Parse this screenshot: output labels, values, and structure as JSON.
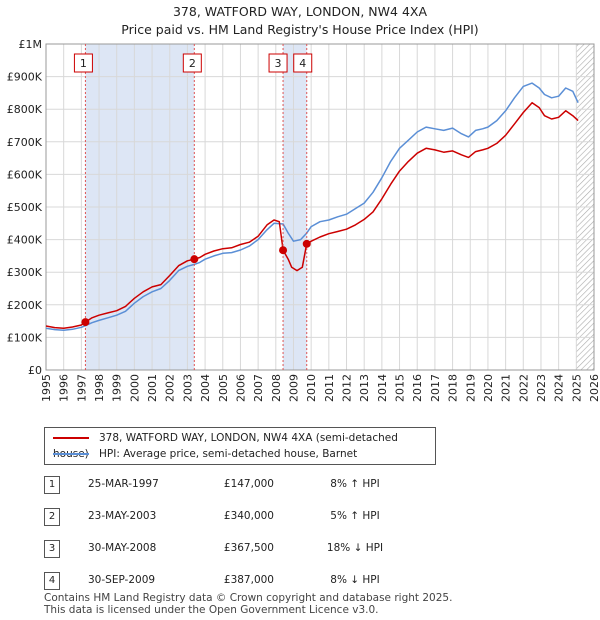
{
  "header": {
    "title_line1": "378, WATFORD WAY, LONDON, NW4 4XA",
    "title_line2": "Price paid vs. HM Land Registry's House Price Index (HPI)"
  },
  "colors": {
    "property_line": "#cc0000",
    "hpi_line": "#5b8fd6",
    "shade": "#dde6f5",
    "grid": "#d8d8d8",
    "hatch": "#aaaaaa"
  },
  "legend": {
    "property_label": "378, WATFORD WAY, LONDON, NW4 4XA (semi-detached house)",
    "hpi_label": "HPI: Average price, semi-detached house, Barnet"
  },
  "sales": [
    {
      "num": "1",
      "date": "25-MAR-1997",
      "price": "£147,000",
      "hpi": "8% ↑ HPI"
    },
    {
      "num": "2",
      "date": "23-MAY-2003",
      "price": "£340,000",
      "hpi": "5% ↑ HPI"
    },
    {
      "num": "3",
      "date": "30-MAY-2008",
      "price": "£367,500",
      "hpi": "18% ↓ HPI"
    },
    {
      "num": "4",
      "date": "30-SEP-2009",
      "price": "£387,000",
      "hpi": "8% ↓ HPI"
    }
  ],
  "footer": {
    "line1": "Contains HM Land Registry data © Crown copyright and database right 2025.",
    "line2": "This data is licensed under the Open Government Licence v3.0."
  },
  "chart_data": {
    "type": "line",
    "title": "378, WATFORD WAY, LONDON, NW4 4XA",
    "subtitle": "Price paid vs. HM Land Registry's House Price Index (HPI)",
    "xlim": [
      1995,
      2026
    ],
    "ylim": [
      0,
      1000000
    ],
    "x_ticks": [
      "1995",
      "1996",
      "1997",
      "1998",
      "1999",
      "2000",
      "2001",
      "2002",
      "2003",
      "2004",
      "2005",
      "2006",
      "2007",
      "2008",
      "2009",
      "2010",
      "2011",
      "2012",
      "2013",
      "2014",
      "2015",
      "2016",
      "2017",
      "2018",
      "2019",
      "2020",
      "2021",
      "2022",
      "2023",
      "2024",
      "2025",
      "2026"
    ],
    "y_ticks": [
      {
        "value": 0,
        "label": "£0"
      },
      {
        "value": 100000,
        "label": "£100K"
      },
      {
        "value": 200000,
        "label": "£200K"
      },
      {
        "value": 300000,
        "label": "£300K"
      },
      {
        "value": 400000,
        "label": "£400K"
      },
      {
        "value": 500000,
        "label": "£500K"
      },
      {
        "value": 600000,
        "label": "£600K"
      },
      {
        "value": 700000,
        "label": "£700K"
      },
      {
        "value": 800000,
        "label": "£800K"
      },
      {
        "value": 900000,
        "label": "£900K"
      },
      {
        "value": 1000000,
        "label": "£1M"
      }
    ],
    "shaded_ranges": [
      [
        1997.23,
        2003.39
      ],
      [
        2008.41,
        2009.75
      ]
    ],
    "hatched_from": 2025.0,
    "sale_markers": [
      {
        "label": "1",
        "x": 1997.23,
        "y": 147000
      },
      {
        "label": "2",
        "x": 2003.39,
        "y": 340000
      },
      {
        "label": "3",
        "x": 2008.41,
        "y": 367500
      },
      {
        "label": "4",
        "x": 2009.75,
        "y": 387000
      }
    ],
    "series": [
      {
        "name": "378, WATFORD WAY, LONDON, NW4 4XA (semi-detached house)",
        "color": "#cc0000",
        "points": [
          [
            1995.0,
            135000
          ],
          [
            1995.5,
            130000
          ],
          [
            1996.0,
            128000
          ],
          [
            1996.5,
            132000
          ],
          [
            1997.0,
            138000
          ],
          [
            1997.23,
            147000
          ],
          [
            1997.6,
            160000
          ],
          [
            1998.0,
            168000
          ],
          [
            1998.5,
            175000
          ],
          [
            1999.0,
            182000
          ],
          [
            1999.5,
            195000
          ],
          [
            2000.0,
            220000
          ],
          [
            2000.5,
            240000
          ],
          [
            2001.0,
            255000
          ],
          [
            2001.5,
            262000
          ],
          [
            2002.0,
            290000
          ],
          [
            2002.5,
            320000
          ],
          [
            2003.0,
            335000
          ],
          [
            2003.39,
            340000
          ],
          [
            2003.7,
            345000
          ],
          [
            2004.0,
            355000
          ],
          [
            2004.5,
            365000
          ],
          [
            2005.0,
            372000
          ],
          [
            2005.5,
            375000
          ],
          [
            2006.0,
            385000
          ],
          [
            2006.5,
            392000
          ],
          [
            2007.0,
            410000
          ],
          [
            2007.5,
            445000
          ],
          [
            2007.9,
            460000
          ],
          [
            2008.2,
            455000
          ],
          [
            2008.41,
            367500
          ],
          [
            2008.7,
            340000
          ],
          [
            2008.9,
            315000
          ],
          [
            2009.2,
            305000
          ],
          [
            2009.5,
            315000
          ],
          [
            2009.75,
            387000
          ],
          [
            2010.0,
            395000
          ],
          [
            2010.5,
            408000
          ],
          [
            2011.0,
            418000
          ],
          [
            2011.5,
            425000
          ],
          [
            2012.0,
            432000
          ],
          [
            2012.5,
            445000
          ],
          [
            2013.0,
            462000
          ],
          [
            2013.5,
            485000
          ],
          [
            2014.0,
            525000
          ],
          [
            2014.5,
            570000
          ],
          [
            2015.0,
            610000
          ],
          [
            2015.5,
            640000
          ],
          [
            2016.0,
            665000
          ],
          [
            2016.5,
            680000
          ],
          [
            2017.0,
            675000
          ],
          [
            2017.5,
            668000
          ],
          [
            2018.0,
            672000
          ],
          [
            2018.5,
            660000
          ],
          [
            2018.9,
            652000
          ],
          [
            2019.3,
            670000
          ],
          [
            2019.7,
            675000
          ],
          [
            2020.0,
            680000
          ],
          [
            2020.5,
            695000
          ],
          [
            2021.0,
            720000
          ],
          [
            2021.5,
            755000
          ],
          [
            2022.0,
            790000
          ],
          [
            2022.5,
            820000
          ],
          [
            2022.9,
            805000
          ],
          [
            2023.2,
            780000
          ],
          [
            2023.6,
            770000
          ],
          [
            2024.0,
            775000
          ],
          [
            2024.4,
            795000
          ],
          [
            2024.8,
            780000
          ],
          [
            2025.1,
            765000
          ]
        ]
      },
      {
        "name": "HPI: Average price, semi-detached house, Barnet",
        "color": "#5b8fd6",
        "points": [
          [
            1995.0,
            128000
          ],
          [
            1995.5,
            124000
          ],
          [
            1996.0,
            122000
          ],
          [
            1996.5,
            125000
          ],
          [
            1997.0,
            131000
          ],
          [
            1997.23,
            136000
          ],
          [
            1997.6,
            145000
          ],
          [
            1998.0,
            152000
          ],
          [
            1998.5,
            160000
          ],
          [
            1999.0,
            168000
          ],
          [
            1999.5,
            180000
          ],
          [
            2000.0,
            205000
          ],
          [
            2000.5,
            225000
          ],
          [
            2001.0,
            240000
          ],
          [
            2001.5,
            250000
          ],
          [
            2002.0,
            275000
          ],
          [
            2002.5,
            305000
          ],
          [
            2003.0,
            318000
          ],
          [
            2003.39,
            324000
          ],
          [
            2003.7,
            330000
          ],
          [
            2004.0,
            340000
          ],
          [
            2004.5,
            350000
          ],
          [
            2005.0,
            358000
          ],
          [
            2005.5,
            360000
          ],
          [
            2006.0,
            368000
          ],
          [
            2006.5,
            380000
          ],
          [
            2007.0,
            400000
          ],
          [
            2007.5,
            430000
          ],
          [
            2007.9,
            450000
          ],
          [
            2008.41,
            448000
          ],
          [
            2008.7,
            420000
          ],
          [
            2009.0,
            395000
          ],
          [
            2009.4,
            400000
          ],
          [
            2009.75,
            420000
          ],
          [
            2010.0,
            440000
          ],
          [
            2010.5,
            455000
          ],
          [
            2011.0,
            460000
          ],
          [
            2011.5,
            470000
          ],
          [
            2012.0,
            478000
          ],
          [
            2012.5,
            495000
          ],
          [
            2013.0,
            512000
          ],
          [
            2013.5,
            545000
          ],
          [
            2014.0,
            590000
          ],
          [
            2014.5,
            640000
          ],
          [
            2015.0,
            680000
          ],
          [
            2015.5,
            705000
          ],
          [
            2016.0,
            730000
          ],
          [
            2016.5,
            745000
          ],
          [
            2017.0,
            740000
          ],
          [
            2017.5,
            735000
          ],
          [
            2018.0,
            742000
          ],
          [
            2018.5,
            725000
          ],
          [
            2018.9,
            715000
          ],
          [
            2019.3,
            735000
          ],
          [
            2019.7,
            740000
          ],
          [
            2020.0,
            745000
          ],
          [
            2020.5,
            765000
          ],
          [
            2021.0,
            795000
          ],
          [
            2021.5,
            835000
          ],
          [
            2022.0,
            870000
          ],
          [
            2022.5,
            880000
          ],
          [
            2022.9,
            865000
          ],
          [
            2023.2,
            845000
          ],
          [
            2023.6,
            835000
          ],
          [
            2024.0,
            840000
          ],
          [
            2024.4,
            865000
          ],
          [
            2024.8,
            855000
          ],
          [
            2025.1,
            820000
          ]
        ]
      }
    ]
  }
}
